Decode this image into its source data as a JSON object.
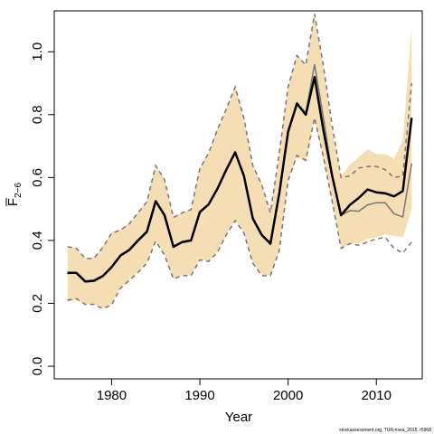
{
  "chart_data": {
    "type": "line",
    "xlabel": "Year",
    "ylabel_main": "F",
    "ylabel_sub": "2−6",
    "credit": "stockassessment.org, TUR-nsea_2015, r5968",
    "xlim": [
      1973.5,
      2015.2
    ],
    "ylim": [
      -0.04,
      1.13
    ],
    "xticks": [
      "1980",
      "1990",
      "2000",
      "2010"
    ],
    "yticks": [
      "0.0",
      "0.2",
      "0.4",
      "0.6",
      "0.8",
      "1.0"
    ],
    "colors": {
      "band": "#f5deb3",
      "estimate": "#000000",
      "previous": "#777777",
      "previous_ci": "#777777"
    },
    "years": [
      1975,
      1976,
      1977,
      1978,
      1979,
      1980,
      1981,
      1982,
      1983,
      1984,
      1985,
      1986,
      1987,
      1988,
      1989,
      1990,
      1991,
      1992,
      1993,
      1994,
      1995,
      1996,
      1997,
      1998,
      1999,
      2000,
      2001,
      2002,
      2003,
      2004,
      2005,
      2006,
      2007,
      2008,
      2009,
      2010,
      2011,
      2012,
      2013,
      2014
    ],
    "series": [
      {
        "values": [
          0.297,
          0.297,
          0.27,
          0.272,
          0.287,
          0.315,
          0.352,
          0.37,
          0.4,
          0.428,
          0.525,
          0.48,
          0.38,
          0.395,
          0.4,
          0.49,
          0.515,
          0.565,
          0.625,
          0.68,
          0.605,
          0.47,
          0.418,
          0.39,
          0.55,
          0.745,
          0.835,
          0.8,
          0.92,
          0.75,
          0.605,
          0.48,
          0.513,
          0.535,
          0.562,
          0.553,
          0.55,
          0.54,
          0.557,
          0.79
        ],
        "lower": [
          0.205,
          0.21,
          0.198,
          0.198,
          0.185,
          0.197,
          0.25,
          0.275,
          0.3,
          0.33,
          0.4,
          0.355,
          0.28,
          0.29,
          0.29,
          0.34,
          0.335,
          0.365,
          0.42,
          0.465,
          0.425,
          0.33,
          0.29,
          0.29,
          0.37,
          0.59,
          0.665,
          0.65,
          0.785,
          0.655,
          0.52,
          0.375,
          0.39,
          0.39,
          0.405,
          0.41,
          0.42,
          0.415,
          0.41,
          0.5
        ],
        "upper": [
          0.38,
          0.375,
          0.345,
          0.345,
          0.38,
          0.425,
          0.435,
          0.455,
          0.49,
          0.525,
          0.64,
          0.595,
          0.475,
          0.49,
          0.5,
          0.63,
          0.68,
          0.755,
          0.82,
          0.89,
          0.79,
          0.64,
          0.58,
          0.49,
          0.68,
          0.89,
          0.99,
          0.96,
          1.12,
          0.95,
          0.75,
          0.605,
          0.64,
          0.665,
          0.69,
          0.675,
          0.675,
          0.66,
          0.72,
          1.08
        ]
      },
      {
        "values": [
          0.295,
          0.297,
          0.268,
          0.27,
          0.285,
          0.313,
          0.35,
          0.368,
          0.398,
          0.425,
          0.523,
          0.478,
          0.378,
          0.393,
          0.398,
          0.488,
          0.513,
          0.563,
          0.623,
          0.678,
          0.603,
          0.468,
          0.415,
          0.388,
          0.548,
          0.745,
          0.838,
          0.805,
          0.96,
          0.79,
          0.61,
          0.48,
          0.495,
          0.493,
          0.513,
          0.52,
          0.52,
          0.485,
          0.475,
          0.645
        ],
        "lower": [
          0.21,
          0.215,
          0.197,
          0.197,
          0.183,
          0.195,
          0.248,
          0.273,
          0.298,
          0.328,
          0.398,
          0.353,
          0.278,
          0.288,
          0.288,
          0.338,
          0.333,
          0.363,
          0.418,
          0.463,
          0.423,
          0.328,
          0.288,
          0.288,
          0.368,
          0.59,
          0.67,
          0.655,
          0.79,
          0.665,
          0.525,
          0.375,
          0.39,
          0.385,
          0.395,
          0.405,
          0.41,
          0.375,
          0.36,
          0.395
        ],
        "upper": [
          0.38,
          0.375,
          0.343,
          0.343,
          0.378,
          0.423,
          0.433,
          0.453,
          0.488,
          0.523,
          0.638,
          0.593,
          0.473,
          0.488,
          0.498,
          0.628,
          0.678,
          0.753,
          0.818,
          0.888,
          0.788,
          0.638,
          0.578,
          0.488,
          0.678,
          0.888,
          0.988,
          0.958,
          1.12,
          0.955,
          0.765,
          0.6,
          0.605,
          0.63,
          0.635,
          0.635,
          0.625,
          0.6,
          0.605,
          0.9
        ]
      }
    ]
  }
}
